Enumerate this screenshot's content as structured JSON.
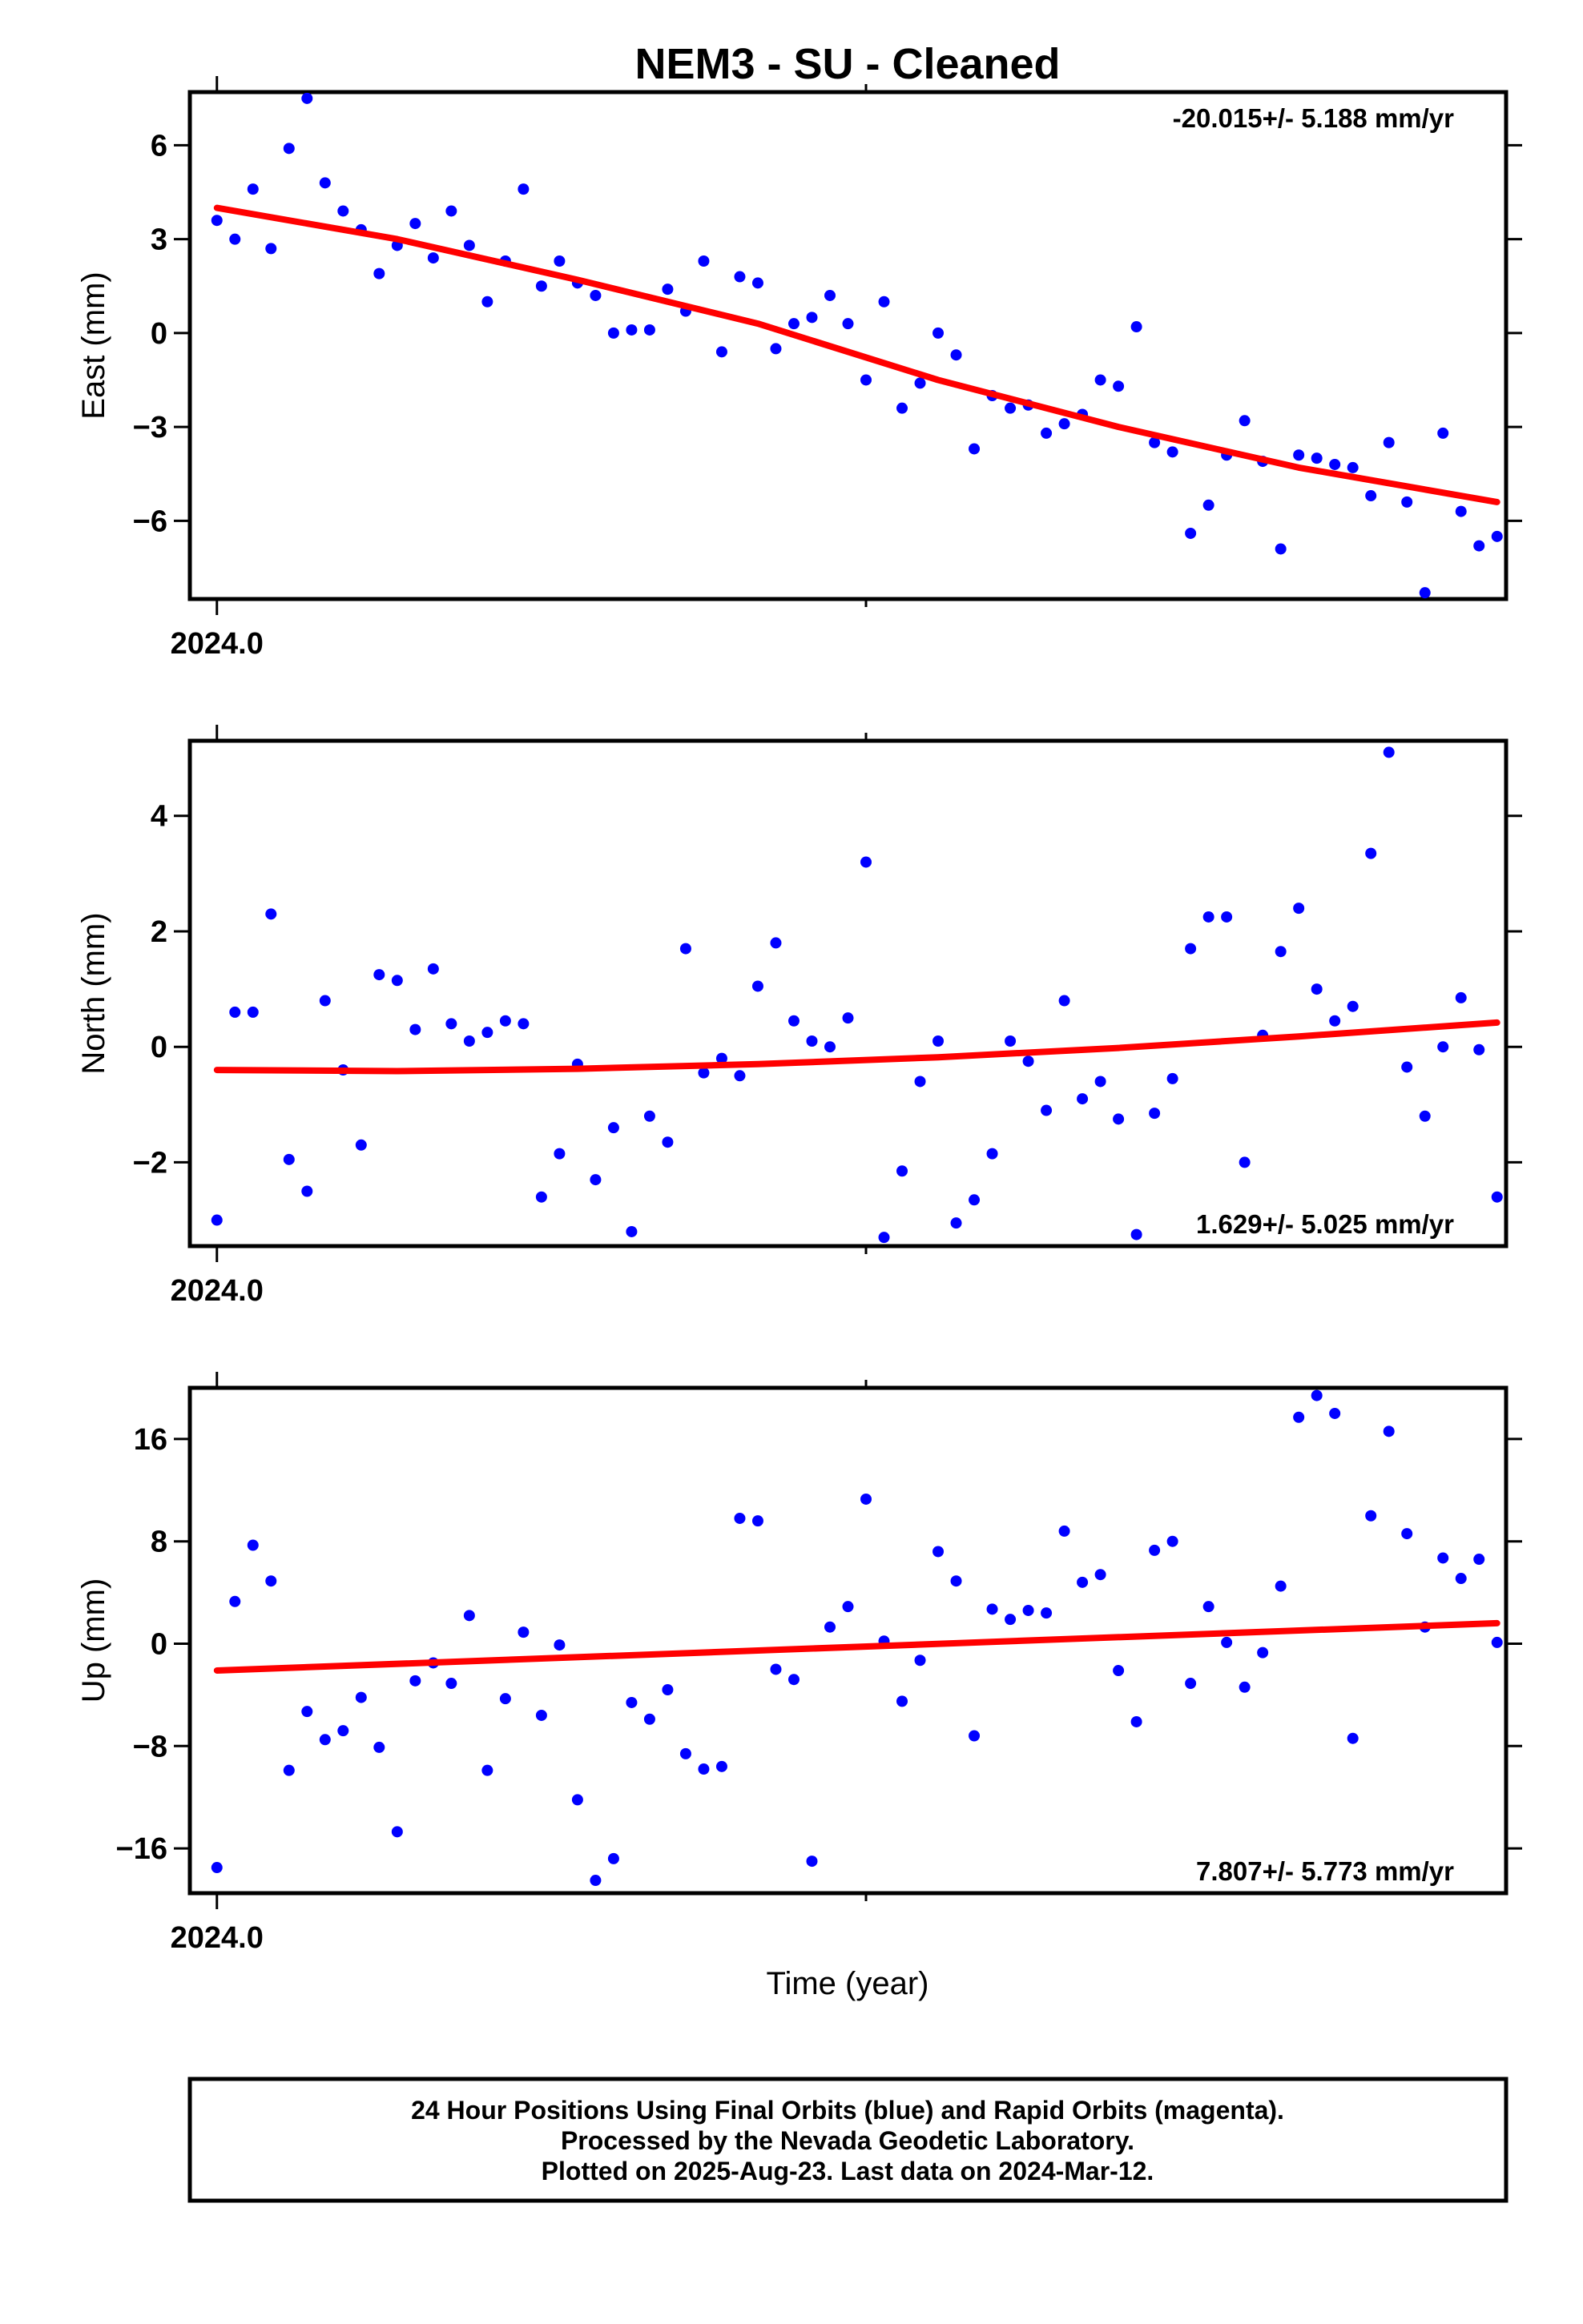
{
  "title": "NEM3  - SU - Cleaned",
  "xlabel": "Time (year)",
  "footer": [
    "24 Hour Positions Using Final Orbits (blue) and Rapid Orbits (magenta).",
    "Processed by the Nevada Geodetic Laboratory.",
    "Plotted on 2025-Aug-23. Last data on 2024-Mar-12."
  ],
  "colors": {
    "final_orbits": "#0000ff",
    "fit": "#ff0000",
    "frame": "#000000"
  },
  "chart_data": [
    {
      "type": "scatter",
      "ylabel": "East (mm)",
      "rate_label": "-20.015+/- 5.188 mm/yr",
      "rate_position": "top-right",
      "x_tick_labels": [
        {
          "x": 0,
          "label": "2024.0"
        }
      ],
      "x_minor_ticks": [
        36
      ],
      "xlim": [
        -1.5,
        71.5
      ],
      "ylim": [
        -8.5,
        7.7
      ],
      "yticks": [
        -6,
        -3,
        0,
        3,
        6
      ],
      "ytick_labels": [
        "−6",
        "−3",
        "0",
        "3",
        "6"
      ],
      "series": [
        {
          "values": [
            3.6,
            3.0,
            4.6,
            2.7,
            5.9,
            7.5,
            4.8,
            3.9,
            3.3,
            1.9,
            2.8,
            3.5,
            2.4,
            3.9,
            2.8,
            1.0,
            2.3,
            4.6,
            1.5,
            2.3,
            1.6,
            1.2,
            0.0,
            0.1,
            0.1,
            1.4,
            0.7,
            2.3,
            -0.6,
            1.8,
            1.6,
            -0.5,
            0.3,
            0.5,
            1.2,
            0.3,
            -1.5,
            1.0,
            -2.4,
            -1.6,
            0.0,
            -0.7,
            -3.7,
            -2.0,
            -2.4,
            -2.3,
            -3.2,
            -2.9,
            -2.6,
            -1.5,
            -1.7,
            0.2,
            -3.5,
            -3.8,
            -6.4,
            -5.5,
            -3.9,
            -2.8,
            -4.1,
            -6.9,
            -3.9,
            -4.0,
            -4.2,
            -4.3,
            -5.2,
            -3.5,
            -5.4,
            -8.3,
            -3.2,
            -5.7,
            -6.8,
            -6.5
          ]
        }
      ],
      "fit": [
        {
          "x": 0,
          "y": 4.0
        },
        {
          "x": 10,
          "y": 3.0
        },
        {
          "x": 20,
          "y": 1.7
        },
        {
          "x": 30,
          "y": 0.3
        },
        {
          "x": 40,
          "y": -1.5
        },
        {
          "x": 50,
          "y": -3.0
        },
        {
          "x": 60,
          "y": -4.3
        },
        {
          "x": 71,
          "y": -5.4
        }
      ]
    },
    {
      "type": "scatter",
      "ylabel": "North (mm)",
      "rate_label": "1.629+/- 5.025 mm/yr",
      "rate_position": "bottom-right",
      "x_tick_labels": [
        {
          "x": 0,
          "label": "2024.0"
        }
      ],
      "x_minor_ticks": [
        36
      ],
      "xlim": [
        -1.5,
        71.5
      ],
      "ylim": [
        -3.45,
        5.3
      ],
      "yticks": [
        -2,
        0,
        2,
        4
      ],
      "ytick_labels": [
        "−2",
        "0",
        "2",
        "4"
      ],
      "series": [
        {
          "values": [
            -3.0,
            0.6,
            0.6,
            2.3,
            -1.95,
            -2.5,
            0.8,
            -0.4,
            -1.7,
            1.25,
            1.15,
            0.3,
            1.35,
            0.4,
            0.1,
            0.25,
            0.45,
            0.4,
            -2.6,
            -1.85,
            -0.3,
            -2.3,
            -1.4,
            -3.2,
            -1.2,
            -1.65,
            1.7,
            -0.45,
            -0.2,
            -0.5,
            1.05,
            1.8,
            0.45,
            0.1,
            0.0,
            0.5,
            3.2,
            -3.3,
            -2.15,
            -0.6,
            0.1,
            -3.05,
            -2.65,
            -1.85,
            0.1,
            -0.25,
            -1.1,
            0.8,
            -0.9,
            -0.6,
            -1.25,
            -3.25,
            -1.15,
            -0.55,
            1.7,
            2.25,
            2.25,
            -2.0,
            0.2,
            1.65,
            2.4,
            1.0,
            0.45,
            0.7,
            3.35,
            5.1,
            -0.35,
            -1.2,
            0.0,
            0.85,
            -0.05,
            -2.6
          ]
        }
      ],
      "fit": [
        {
          "x": 0,
          "y": -0.4
        },
        {
          "x": 10,
          "y": -0.42
        },
        {
          "x": 20,
          "y": -0.38
        },
        {
          "x": 30,
          "y": -0.3
        },
        {
          "x": 40,
          "y": -0.18
        },
        {
          "x": 50,
          "y": -0.02
        },
        {
          "x": 60,
          "y": 0.18
        },
        {
          "x": 71,
          "y": 0.42
        }
      ]
    },
    {
      "type": "scatter",
      "ylabel": "Up (mm)",
      "rate_label": "7.807+/- 5.773 mm/yr",
      "rate_position": "bottom-right",
      "x_tick_labels": [
        {
          "x": 0,
          "label": "2024.0"
        }
      ],
      "x_minor_ticks": [
        36
      ],
      "xlim": [
        -1.5,
        71.5
      ],
      "ylim": [
        -19.5,
        20.0
      ],
      "yticks": [
        -16,
        -8,
        0,
        8,
        16
      ],
      "ytick_labels": [
        "−16",
        "−8",
        "0",
        "8",
        "16"
      ],
      "series": [
        {
          "values": [
            -17.5,
            3.3,
            7.7,
            4.9,
            -9.9,
            -5.3,
            -7.5,
            -6.8,
            -4.2,
            -8.1,
            -14.7,
            -2.9,
            -1.5,
            -3.1,
            2.2,
            -9.9,
            -4.3,
            0.9,
            -5.6,
            -0.1,
            -12.2,
            -18.5,
            -16.8,
            -4.6,
            -5.9,
            -3.6,
            -8.6,
            -9.8,
            -9.6,
            9.8,
            9.6,
            -2.0,
            -2.8,
            -17.0,
            1.3,
            2.9,
            11.3,
            0.2,
            -4.5,
            -1.3,
            7.2,
            4.9,
            -7.2,
            2.7,
            1.9,
            2.6,
            2.4,
            8.8,
            4.8,
            5.4,
            -2.1,
            -6.1,
            7.3,
            8.0,
            -3.1,
            2.9,
            0.1,
            -3.4,
            -0.7,
            4.5,
            17.7,
            19.4,
            18.0,
            -7.4,
            10.0,
            16.6,
            8.6,
            1.3,
            6.7,
            5.1,
            6.6,
            0.1
          ]
        }
      ],
      "fit": [
        {
          "x": 0,
          "y": -2.1
        },
        {
          "x": 71,
          "y": 1.6
        }
      ]
    }
  ]
}
